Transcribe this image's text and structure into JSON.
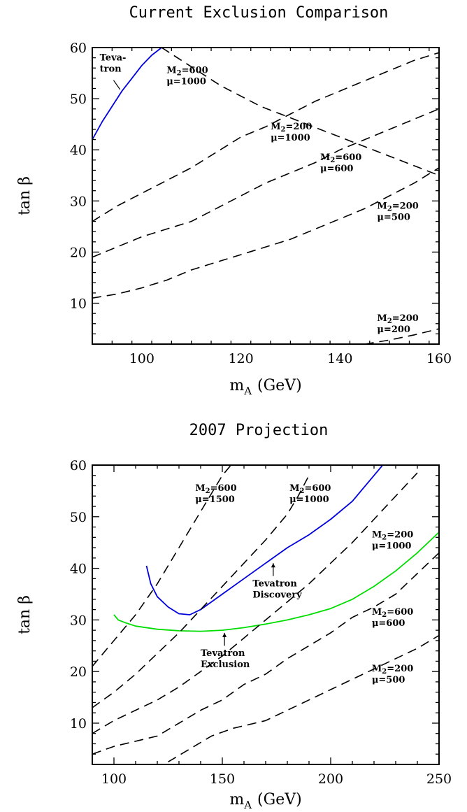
{
  "chart_data": [
    {
      "type": "line",
      "title": "Current Exclusion Comparison",
      "xlabel": "m_A (GeV)",
      "xlabel_main": "m",
      "xlabel_sub": "A",
      "xlabel_unit": "(GeV)",
      "ylabel": "tan β",
      "xlim": [
        90,
        160
      ],
      "ylim": [
        2,
        60
      ],
      "xticks": [
        100,
        120,
        140,
        160
      ],
      "yticks": [
        10,
        20,
        30,
        40,
        50,
        60
      ],
      "grid": false,
      "series": [
        {
          "name": "Tevatron",
          "style": "solid",
          "color": "#0000dd",
          "x": [
            90,
            92,
            94,
            96,
            98,
            100,
            102,
            104
          ],
          "y": [
            42,
            45.5,
            48.5,
            51.5,
            54,
            56.5,
            58.5,
            60
          ]
        },
        {
          "name": "M2=600 mu=1000",
          "style": "dashed",
          "color": "#000000",
          "x": [
            104,
            108,
            112,
            116,
            120,
            124,
            128,
            132,
            136,
            140,
            144,
            148,
            152,
            156,
            160
          ],
          "y": [
            60,
            57.5,
            55,
            52.5,
            50.5,
            48.5,
            47,
            45.5,
            44,
            42.5,
            41,
            39.5,
            38,
            36.5,
            35
          ]
        },
        {
          "name": "M2=200 mu=1000",
          "style": "dashed",
          "color": "#000000",
          "x": [
            90,
            95,
            100,
            105,
            110,
            115,
            120,
            125,
            130,
            135,
            140,
            145,
            150,
            155,
            160
          ],
          "y": [
            26,
            29,
            31.5,
            34,
            36.5,
            39.5,
            42.5,
            44.5,
            47,
            49.5,
            51.5,
            53.5,
            55.5,
            57.5,
            59
          ]
        },
        {
          "name": "M2=600 mu=600",
          "style": "dashed",
          "color": "#000000",
          "x": [
            90,
            95,
            100,
            105,
            110,
            115,
            120,
            125,
            130,
            135,
            140,
            145,
            150,
            155,
            160
          ],
          "y": [
            19,
            21,
            23,
            24.5,
            26,
            28.5,
            31,
            33.5,
            35.5,
            37.5,
            40,
            42,
            44,
            46,
            48
          ]
        },
        {
          "name": "M2=200 mu=500",
          "style": "dashed",
          "color": "#000000",
          "x": [
            90,
            95,
            100,
            105,
            110,
            115,
            120,
            125,
            130,
            135,
            140,
            145,
            150,
            155,
            160
          ],
          "y": [
            11,
            11.8,
            13,
            14.5,
            16.5,
            18,
            19.5,
            21,
            22.5,
            24.5,
            26.5,
            28.5,
            31,
            33.5,
            36.5
          ]
        },
        {
          "name": "M2=200 mu=200",
          "style": "dashed",
          "color": "#000000",
          "x": [
            145,
            150,
            155,
            160
          ],
          "y": [
            2,
            2.8,
            3.8,
            5
          ]
        }
      ],
      "annotations": [
        {
          "lines": [
            "Teva-",
            "tron"
          ],
          "x": 91.5,
          "y": 57.5
        },
        {
          "lines": [
            "M2=600",
            "μ=1000"
          ],
          "x": 105,
          "y": 55
        },
        {
          "lines": [
            "M2=200",
            "μ=1000"
          ],
          "x": 126,
          "y": 44
        },
        {
          "lines": [
            "M2=600",
            "μ=600"
          ],
          "x": 136,
          "y": 38
        },
        {
          "lines": [
            "M2=200",
            "μ=500"
          ],
          "x": 147.5,
          "y": 28.5
        },
        {
          "lines": [
            "M2=200",
            "μ=200"
          ],
          "x": 147.5,
          "y": 6.5
        }
      ]
    },
    {
      "type": "line",
      "title": "2007 Projection",
      "xlabel": "m_A (GeV)",
      "xlabel_main": "m",
      "xlabel_sub": "A",
      "xlabel_unit": "(GeV)",
      "ylabel": "tan β",
      "xlim": [
        90,
        250
      ],
      "ylim": [
        2,
        60
      ],
      "xticks": [
        100,
        150,
        200,
        250
      ],
      "yticks": [
        10,
        20,
        30,
        40,
        50,
        60
      ],
      "grid": false,
      "series": [
        {
          "name": "Tevatron Discovery",
          "style": "solid",
          "color": "#0000dd",
          "x": [
            115,
            117,
            120,
            125,
            130,
            135,
            140,
            150,
            160,
            170,
            180,
            190,
            200,
            210,
            215,
            220,
            225
          ],
          "y": [
            40.5,
            37,
            34.5,
            32.5,
            31.2,
            31,
            32,
            35,
            38,
            41,
            44,
            46.5,
            49.5,
            53,
            55.5,
            58,
            60.5
          ]
        },
        {
          "name": "Tevatron Exclusion",
          "style": "solid",
          "color": "#00dd00",
          "x": [
            100,
            102,
            105,
            110,
            120,
            130,
            140,
            150,
            160,
            170,
            180,
            190,
            200,
            210,
            220,
            230,
            240,
            250
          ],
          "y": [
            31,
            30,
            29.5,
            28.8,
            28.2,
            27.9,
            27.8,
            28,
            28.5,
            29.2,
            30,
            31,
            32.2,
            34,
            36.5,
            39.5,
            43,
            47
          ]
        },
        {
          "name": "M2=600 mu=1500",
          "style": "dashed",
          "color": "#000000",
          "x": [
            90,
            95,
            100,
            105,
            110,
            115,
            120,
            125,
            130,
            135,
            140,
            145,
            150,
            155
          ],
          "y": [
            21,
            23.5,
            26,
            28.5,
            31,
            34,
            37,
            40.5,
            44,
            47.5,
            51,
            54.5,
            58,
            60.5
          ]
        },
        {
          "name": "M2=600 mu=1000",
          "style": "dashed",
          "color": "#000000",
          "x": [
            90,
            100,
            110,
            120,
            130,
            140,
            150,
            160,
            170,
            180,
            185,
            190
          ],
          "y": [
            13,
            16,
            19.5,
            23.5,
            27.5,
            32,
            36.5,
            41,
            45.5,
            50.5,
            54,
            58
          ]
        },
        {
          "name": "M2=200 mu=1000",
          "style": "dashed",
          "color": "#000000",
          "x": [
            90,
            100,
            110,
            120,
            130,
            140,
            150,
            160,
            170,
            180,
            190,
            200,
            210,
            220,
            230,
            240
          ],
          "y": [
            8,
            10.5,
            12.5,
            14.5,
            17,
            20,
            23,
            26.5,
            30,
            33.5,
            37,
            41,
            45,
            49.5,
            54,
            58.5
          ]
        },
        {
          "name": "M2=600 mu=600",
          "style": "dashed",
          "color": "#000000",
          "x": [
            90,
            100,
            110,
            120,
            130,
            140,
            150,
            160,
            170,
            180,
            190,
            200,
            210,
            220,
            230,
            240,
            250
          ],
          "y": [
            4,
            5.5,
            6.5,
            7.5,
            10,
            12.5,
            14.5,
            17.5,
            19.5,
            22.5,
            25,
            27.5,
            30.5,
            32.5,
            35,
            39,
            43
          ]
        },
        {
          "name": "M2=200 mu=500",
          "style": "dashed",
          "color": "#000000",
          "x": [
            125,
            135,
            145,
            155,
            160,
            170,
            180,
            190,
            200,
            210,
            220,
            230,
            240,
            250
          ],
          "y": [
            2.5,
            5,
            7.5,
            9,
            9.5,
            10.5,
            12.5,
            14.5,
            16.5,
            18.5,
            20.5,
            22.5,
            24.5,
            27
          ]
        }
      ],
      "annotations": [
        {
          "lines": [
            "M2=600",
            "μ=1500"
          ],
          "x": 137.5,
          "y": 55
        },
        {
          "lines": [
            "M2=600",
            "μ=1000"
          ],
          "x": 181,
          "y": 55
        },
        {
          "lines": [
            "M2=200",
            "μ=1000"
          ],
          "x": 219,
          "y": 46
        },
        {
          "lines": [
            "M2=600",
            "μ=600"
          ],
          "x": 219,
          "y": 31
        },
        {
          "lines": [
            "M2=200",
            "μ=500"
          ],
          "x": 219,
          "y": 20
        },
        {
          "lines": [
            "Tevatron",
            "Discovery"
          ],
          "x": 164,
          "y": 36.5,
          "arrow_from": [
            173.5,
            38.5
          ],
          "arrow_to": [
            173.5,
            41
          ]
        },
        {
          "lines": [
            "Tevatron",
            "Exclusion"
          ],
          "x": 140,
          "y": 23,
          "arrow_from": [
            151,
            25
          ],
          "arrow_to": [
            151,
            27.5
          ]
        }
      ]
    }
  ]
}
